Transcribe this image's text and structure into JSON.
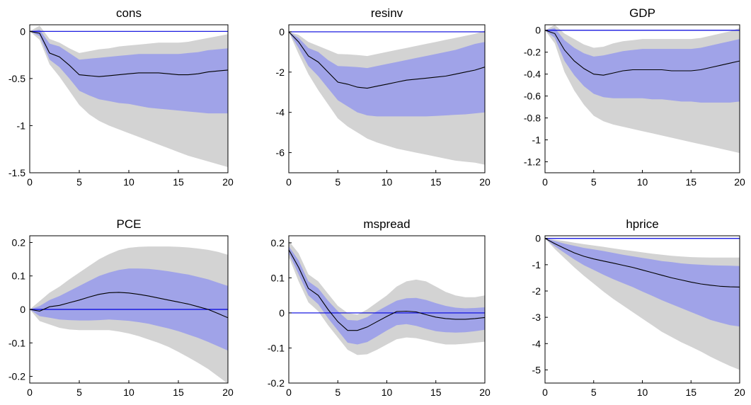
{
  "colors": {
    "outer_band": "#d3d3d3",
    "inner_band": "#a0a3e8",
    "median_line": "#000000",
    "zero_line": "#0000dd"
  },
  "chart_data": [
    {
      "type": "area",
      "title": "cons",
      "xlim": [
        0,
        20
      ],
      "ylim": [
        -1.5,
        0.07
      ],
      "xticks": [
        "0",
        "5",
        "10",
        "15",
        "20"
      ],
      "yticks": [
        "0",
        "-0.5",
        "-1",
        "-1.5"
      ],
      "x": [
        0,
        1,
        2,
        3,
        4,
        5,
        6,
        7,
        8,
        9,
        10,
        11,
        12,
        13,
        14,
        15,
        16,
        17,
        18,
        19,
        20
      ],
      "median": [
        0,
        -0.02,
        -0.23,
        -0.27,
        -0.36,
        -0.46,
        -0.47,
        -0.48,
        -0.47,
        -0.46,
        -0.45,
        -0.44,
        -0.44,
        -0.44,
        -0.45,
        -0.46,
        -0.46,
        -0.45,
        -0.43,
        -0.42,
        -0.41
      ],
      "band68_upper": [
        0,
        0.02,
        -0.13,
        -0.16,
        -0.23,
        -0.3,
        -0.29,
        -0.28,
        -0.27,
        -0.26,
        -0.25,
        -0.24,
        -0.24,
        -0.24,
        -0.24,
        -0.24,
        -0.23,
        -0.22,
        -0.2,
        -0.19,
        -0.18
      ],
      "band68_lower": [
        0,
        -0.05,
        -0.3,
        -0.38,
        -0.5,
        -0.63,
        -0.68,
        -0.72,
        -0.74,
        -0.76,
        -0.77,
        -0.79,
        -0.81,
        -0.82,
        -0.83,
        -0.84,
        -0.85,
        -0.86,
        -0.87,
        -0.87,
        -0.87
      ],
      "band90_upper": [
        0,
        0.06,
        -0.08,
        -0.12,
        -0.18,
        -0.23,
        -0.21,
        -0.19,
        -0.18,
        -0.16,
        -0.15,
        -0.14,
        -0.13,
        -0.12,
        -0.12,
        -0.12,
        -0.11,
        -0.09,
        -0.07,
        -0.05,
        -0.03
      ],
      "band90_lower": [
        0,
        -0.09,
        -0.35,
        -0.48,
        -0.63,
        -0.78,
        -0.88,
        -0.95,
        -1,
        -1.04,
        -1.08,
        -1.12,
        -1.16,
        -1.2,
        -1.24,
        -1.28,
        -1.32,
        -1.35,
        -1.38,
        -1.41,
        -1.44
      ]
    },
    {
      "type": "area",
      "title": "resinv",
      "xlim": [
        0,
        20
      ],
      "ylim": [
        -7,
        0.35
      ],
      "xticks": [
        "0",
        "5",
        "10",
        "15",
        "20"
      ],
      "yticks": [
        "0",
        "-2",
        "-4",
        "-6"
      ],
      "x": [
        0,
        1,
        2,
        3,
        4,
        5,
        6,
        7,
        8,
        9,
        10,
        11,
        12,
        13,
        14,
        15,
        16,
        17,
        18,
        19,
        20
      ],
      "median": [
        0,
        -0.5,
        -1.2,
        -1.5,
        -2,
        -2.5,
        -2.6,
        -2.75,
        -2.8,
        -2.7,
        -2.6,
        -2.5,
        -2.4,
        -2.35,
        -2.3,
        -2.25,
        -2.2,
        -2.1,
        -2,
        -1.9,
        -1.75
      ],
      "band68_upper": [
        0,
        -0.3,
        -0.8,
        -1,
        -1.4,
        -1.7,
        -1.72,
        -1.75,
        -1.8,
        -1.7,
        -1.6,
        -1.5,
        -1.4,
        -1.3,
        -1.2,
        -1.1,
        -1,
        -0.9,
        -0.75,
        -0.6,
        -0.5
      ],
      "band68_lower": [
        0,
        -0.8,
        -1.7,
        -2.2,
        -2.8,
        -3.4,
        -3.7,
        -4,
        -4.15,
        -4.2,
        -4.2,
        -4.2,
        -4.2,
        -4.2,
        -4.2,
        -4.18,
        -4.15,
        -4.12,
        -4.1,
        -4.05,
        -4
      ],
      "band90_upper": [
        0,
        -0.15,
        -0.5,
        -0.7,
        -0.9,
        -1.1,
        -1.12,
        -1.15,
        -1.2,
        -1.1,
        -1,
        -0.9,
        -0.8,
        -0.7,
        -0.6,
        -0.5,
        -0.4,
        -0.3,
        -0.2,
        -0.1,
        0.05
      ],
      "band90_lower": [
        0,
        -1.1,
        -2.1,
        -2.9,
        -3.6,
        -4.3,
        -4.7,
        -5,
        -5.3,
        -5.5,
        -5.65,
        -5.8,
        -5.9,
        -6,
        -6.1,
        -6.2,
        -6.3,
        -6.4,
        -6.45,
        -6.5,
        -6.6
      ]
    },
    {
      "type": "area",
      "title": "GDP",
      "xlim": [
        0,
        20
      ],
      "ylim": [
        -1.3,
        0.05
      ],
      "xticks": [
        "0",
        "5",
        "10",
        "15",
        "20"
      ],
      "yticks": [
        "0",
        "-0.2",
        "-0.4",
        "-0.6",
        "-0.8",
        "-1",
        "-1.2"
      ],
      "x": [
        0,
        1,
        2,
        3,
        4,
        5,
        6,
        7,
        8,
        9,
        10,
        11,
        12,
        13,
        14,
        15,
        16,
        17,
        18,
        19,
        20
      ],
      "median": [
        0,
        -0.03,
        -0.18,
        -0.28,
        -0.35,
        -0.4,
        -0.41,
        -0.39,
        -0.37,
        -0.36,
        -0.36,
        -0.36,
        -0.36,
        -0.37,
        -0.37,
        -0.37,
        -0.36,
        -0.34,
        -0.32,
        -0.3,
        -0.28
      ],
      "band68_upper": [
        0,
        0.02,
        -0.09,
        -0.16,
        -0.21,
        -0.24,
        -0.23,
        -0.21,
        -0.19,
        -0.18,
        -0.17,
        -0.17,
        -0.17,
        -0.17,
        -0.17,
        -0.17,
        -0.16,
        -0.14,
        -0.12,
        -0.1,
        -0.08
      ],
      "band68_lower": [
        0,
        -0.07,
        -0.28,
        -0.41,
        -0.51,
        -0.58,
        -0.61,
        -0.62,
        -0.62,
        -0.62,
        -0.62,
        -0.63,
        -0.63,
        -0.64,
        -0.65,
        -0.65,
        -0.66,
        -0.66,
        -0.66,
        -0.66,
        -0.65
      ],
      "band90_upper": [
        0,
        0.05,
        -0.03,
        -0.08,
        -0.13,
        -0.16,
        -0.15,
        -0.12,
        -0.1,
        -0.09,
        -0.08,
        -0.08,
        -0.08,
        -0.08,
        -0.08,
        -0.08,
        -0.07,
        -0.05,
        -0.03,
        -0.01,
        0.02
      ],
      "band90_lower": [
        0,
        -0.12,
        -0.38,
        -0.55,
        -0.68,
        -0.78,
        -0.83,
        -0.86,
        -0.88,
        -0.9,
        -0.92,
        -0.94,
        -0.96,
        -0.98,
        -1,
        -1.02,
        -1.04,
        -1.06,
        -1.08,
        -1.1,
        -1.12
      ]
    },
    {
      "type": "area",
      "title": "PCE",
      "xlim": [
        0,
        20
      ],
      "ylim": [
        -0.22,
        0.22
      ],
      "xticks": [
        "0",
        "5",
        "10",
        "15",
        "20"
      ],
      "yticks": [
        "0.2",
        "0.1",
        "0",
        "-0.1",
        "-0.2"
      ],
      "x": [
        0,
        1,
        2,
        3,
        4,
        5,
        6,
        7,
        8,
        9,
        10,
        11,
        12,
        13,
        14,
        15,
        16,
        17,
        18,
        19,
        20
      ],
      "median": [
        0,
        -0.005,
        0.008,
        0.012,
        0.02,
        0.028,
        0.037,
        0.045,
        0.05,
        0.051,
        0.049,
        0.045,
        0.04,
        0.034,
        0.028,
        0.022,
        0.016,
        0.008,
        0,
        -0.012,
        -0.025
      ],
      "band68_upper": [
        0,
        0.01,
        0.028,
        0.04,
        0.055,
        0.07,
        0.085,
        0.1,
        0.11,
        0.118,
        0.122,
        0.122,
        0.121,
        0.118,
        0.114,
        0.109,
        0.104,
        0.097,
        0.09,
        0.08,
        0.07
      ],
      "band68_lower": [
        0,
        -0.02,
        -0.025,
        -0.03,
        -0.032,
        -0.033,
        -0.033,
        -0.032,
        -0.03,
        -0.032,
        -0.034,
        -0.038,
        -0.043,
        -0.05,
        -0.057,
        -0.065,
        -0.075,
        -0.085,
        -0.097,
        -0.11,
        -0.123
      ],
      "band90_upper": [
        0,
        0.025,
        0.05,
        0.068,
        0.09,
        0.11,
        0.13,
        0.15,
        0.165,
        0.177,
        0.184,
        0.187,
        0.188,
        0.188,
        0.188,
        0.187,
        0.185,
        0.182,
        0.178,
        0.172,
        0.163
      ],
      "band90_lower": [
        0,
        -0.035,
        -0.045,
        -0.055,
        -0.06,
        -0.062,
        -0.062,
        -0.062,
        -0.062,
        -0.066,
        -0.072,
        -0.08,
        -0.09,
        -0.1,
        -0.112,
        -0.127,
        -0.143,
        -0.16,
        -0.178,
        -0.2,
        -0.222
      ]
    },
    {
      "type": "area",
      "title": "mspread",
      "xlim": [
        0,
        20
      ],
      "ylim": [
        -0.2,
        0.22
      ],
      "xticks": [
        "0",
        "5",
        "10",
        "15",
        "20"
      ],
      "yticks": [
        "0.2",
        "0.1",
        "0",
        "-0.1",
        "-0.2"
      ],
      "x": [
        0,
        1,
        2,
        3,
        4,
        5,
        6,
        7,
        8,
        9,
        10,
        11,
        12,
        13,
        14,
        15,
        16,
        17,
        18,
        19,
        20
      ],
      "median": [
        0.18,
        0.13,
        0.07,
        0.05,
        0.01,
        -0.025,
        -0.05,
        -0.05,
        -0.04,
        -0.025,
        -0.01,
        0.004,
        0.005,
        0.003,
        -0.005,
        -0.012,
        -0.016,
        -0.018,
        -0.018,
        -0.016,
        -0.013
      ],
      "band68_upper": [
        0.19,
        0.15,
        0.09,
        0.07,
        0.035,
        0.005,
        -0.02,
        -0.022,
        -0.012,
        0.005,
        0.02,
        0.035,
        0.042,
        0.043,
        0.037,
        0.028,
        0.02,
        0.015,
        0.013,
        0.014,
        0.016
      ],
      "band68_lower": [
        0.17,
        0.11,
        0.05,
        0.025,
        -0.015,
        -0.05,
        -0.085,
        -0.09,
        -0.083,
        -0.067,
        -0.05,
        -0.035,
        -0.032,
        -0.037,
        -0.045,
        -0.052,
        -0.055,
        -0.056,
        -0.055,
        -0.052,
        -0.048
      ],
      "band90_upper": [
        0.205,
        0.17,
        0.11,
        0.09,
        0.055,
        0.02,
        0,
        -0.005,
        0.01,
        0.03,
        0.05,
        0.075,
        0.09,
        0.095,
        0.09,
        0.075,
        0.06,
        0.05,
        0.045,
        0.045,
        0.05
      ],
      "band90_lower": [
        0.16,
        0.09,
        0.03,
        0.005,
        -0.035,
        -0.07,
        -0.105,
        -0.12,
        -0.118,
        -0.105,
        -0.09,
        -0.075,
        -0.07,
        -0.072,
        -0.078,
        -0.085,
        -0.09,
        -0.09,
        -0.088,
        -0.085,
        -0.082
      ]
    },
    {
      "type": "area",
      "title": "hprice",
      "xlim": [
        0,
        20
      ],
      "ylim": [
        -5.5,
        0.1
      ],
      "xticks": [
        "0",
        "5",
        "10",
        "15",
        "20"
      ],
      "yticks": [
        "0",
        "-1",
        "-2",
        "-3",
        "-4",
        "-5"
      ],
      "x": [
        0,
        1,
        2,
        3,
        4,
        5,
        6,
        7,
        8,
        9,
        10,
        11,
        12,
        13,
        14,
        15,
        16,
        17,
        18,
        19,
        20
      ],
      "median": [
        0,
        -0.2,
        -0.38,
        -0.55,
        -0.68,
        -0.78,
        -0.86,
        -0.94,
        -1.02,
        -1.1,
        -1.2,
        -1.3,
        -1.4,
        -1.5,
        -1.58,
        -1.66,
        -1.73,
        -1.78,
        -1.82,
        -1.84,
        -1.85
      ],
      "band68_upper": [
        0,
        -0.1,
        -0.2,
        -0.28,
        -0.36,
        -0.42,
        -0.48,
        -0.55,
        -0.62,
        -0.68,
        -0.74,
        -0.8,
        -0.86,
        -0.9,
        -0.95,
        -0.98,
        -1,
        -1.02,
        -1.03,
        -1.04,
        -1.05
      ],
      "band68_lower": [
        0,
        -0.3,
        -0.55,
        -0.8,
        -1.02,
        -1.2,
        -1.38,
        -1.55,
        -1.7,
        -1.85,
        -2.02,
        -2.18,
        -2.35,
        -2.5,
        -2.65,
        -2.8,
        -2.95,
        -3.1,
        -3.2,
        -3.3,
        -3.35
      ],
      "band90_upper": [
        0,
        -0.05,
        -0.1,
        -0.16,
        -0.22,
        -0.27,
        -0.32,
        -0.38,
        -0.43,
        -0.48,
        -0.53,
        -0.58,
        -0.62,
        -0.66,
        -0.69,
        -0.71,
        -0.72,
        -0.73,
        -0.73,
        -0.73,
        -0.73
      ],
      "band90_lower": [
        0,
        -0.4,
        -0.75,
        -1.1,
        -1.42,
        -1.72,
        -2.02,
        -2.3,
        -2.55,
        -2.8,
        -3.05,
        -3.3,
        -3.55,
        -3.75,
        -3.95,
        -4.12,
        -4.3,
        -4.5,
        -4.68,
        -4.85,
        -5
      ]
    }
  ]
}
